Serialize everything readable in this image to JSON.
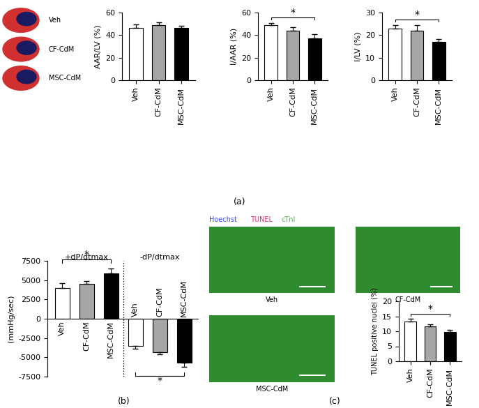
{
  "panel_labels": [
    "(a)",
    "(b)",
    "(c)"
  ],
  "heart_images": {
    "labels": [
      "Veh",
      "CF-CdM",
      "MSC-CdM"
    ]
  },
  "micrographs": {
    "stain_legend": [
      {
        "text": "Hoechst",
        "color": "#3a4cff"
      },
      {
        "text": "TUNEL",
        "color": "#e0307a"
      },
      {
        "text": "cTnI",
        "color": "#3fbf3f"
      }
    ],
    "labels": [
      "Veh",
      "CF-CdM",
      "MSC-CdM"
    ]
  },
  "chart_data": [
    {
      "type": "bar",
      "ylabel": "AAR/LV (%)",
      "categories": [
        "Veh",
        "CF-CdM",
        "MSC-CdM"
      ],
      "values": [
        46.5,
        49,
        46.5
      ],
      "errors": [
        3,
        2.5,
        2
      ],
      "colors": [
        "#ffffff",
        "#a6a6a6",
        "#000000"
      ],
      "ylim": [
        0,
        60
      ],
      "yticks": [
        0,
        20,
        40,
        60
      ]
    },
    {
      "type": "bar",
      "ylabel": "I/AAR (%)",
      "categories": [
        "Veh",
        "CF-CdM",
        "MSC-CdM"
      ],
      "values": [
        49,
        44,
        37
      ],
      "errors": [
        2,
        3,
        4
      ],
      "colors": [
        "#ffffff",
        "#a6a6a6",
        "#000000"
      ],
      "ylim": [
        0,
        60
      ],
      "yticks": [
        0,
        20,
        40,
        60
      ],
      "annotations": [
        {
          "text": "*",
          "between": [
            0,
            2
          ]
        }
      ]
    },
    {
      "type": "bar",
      "ylabel": "I/LV (%)",
      "categories": [
        "Veh",
        "CF-CdM",
        "MSC-CdM"
      ],
      "values": [
        23,
        22,
        17
      ],
      "errors": [
        1.5,
        2.5,
        1.3
      ],
      "colors": [
        "#ffffff",
        "#a6a6a6",
        "#000000"
      ],
      "ylim": [
        0,
        30
      ],
      "yticks": [
        0,
        10,
        20,
        30
      ],
      "annotations": [
        {
          "text": "*",
          "between": [
            0,
            2
          ]
        }
      ]
    },
    {
      "type": "bar",
      "ylabel": "(mmHg/sec)",
      "categories": [
        "Veh",
        "CF-CdM",
        "MSC-CdM",
        "Veh",
        "CF-CdM",
        "MSC-CdM"
      ],
      "values": [
        4000,
        4500,
        5900,
        -3500,
        -4300,
        -5700
      ],
      "errors": [
        600,
        400,
        600,
        400,
        300,
        500
      ],
      "colors": [
        "#ffffff",
        "#a6a6a6",
        "#000000",
        "#ffffff",
        "#a6a6a6",
        "#000000"
      ],
      "ylim": [
        -7500,
        7500
      ],
      "yticks": [
        -7500,
        -5000,
        -2500,
        0,
        2500,
        5000,
        7500
      ],
      "groups": [
        {
          "name": "+dP/dtmax",
          "between": [
            0,
            2
          ]
        },
        {
          "name": "-dP/dtmax",
          "between": [
            3,
            5
          ]
        }
      ],
      "annotations": [
        {
          "text": "*",
          "between": [
            0,
            2
          ]
        },
        {
          "text": "*",
          "between": [
            3,
            5
          ]
        }
      ]
    },
    {
      "type": "bar",
      "ylabel": "TUNEL positive nuclei (%)",
      "categories": [
        "Veh",
        "CF-CdM",
        "MSC-CdM"
      ],
      "values": [
        13.3,
        11.6,
        9.8
      ],
      "errors": [
        0.9,
        0.7,
        0.7
      ],
      "colors": [
        "#ffffff",
        "#a6a6a6",
        "#000000"
      ],
      "ylim": [
        0,
        20
      ],
      "yticks": [
        0,
        5,
        10,
        15,
        20
      ],
      "annotations": [
        {
          "text": "*",
          "between": [
            0,
            2
          ]
        }
      ]
    }
  ]
}
